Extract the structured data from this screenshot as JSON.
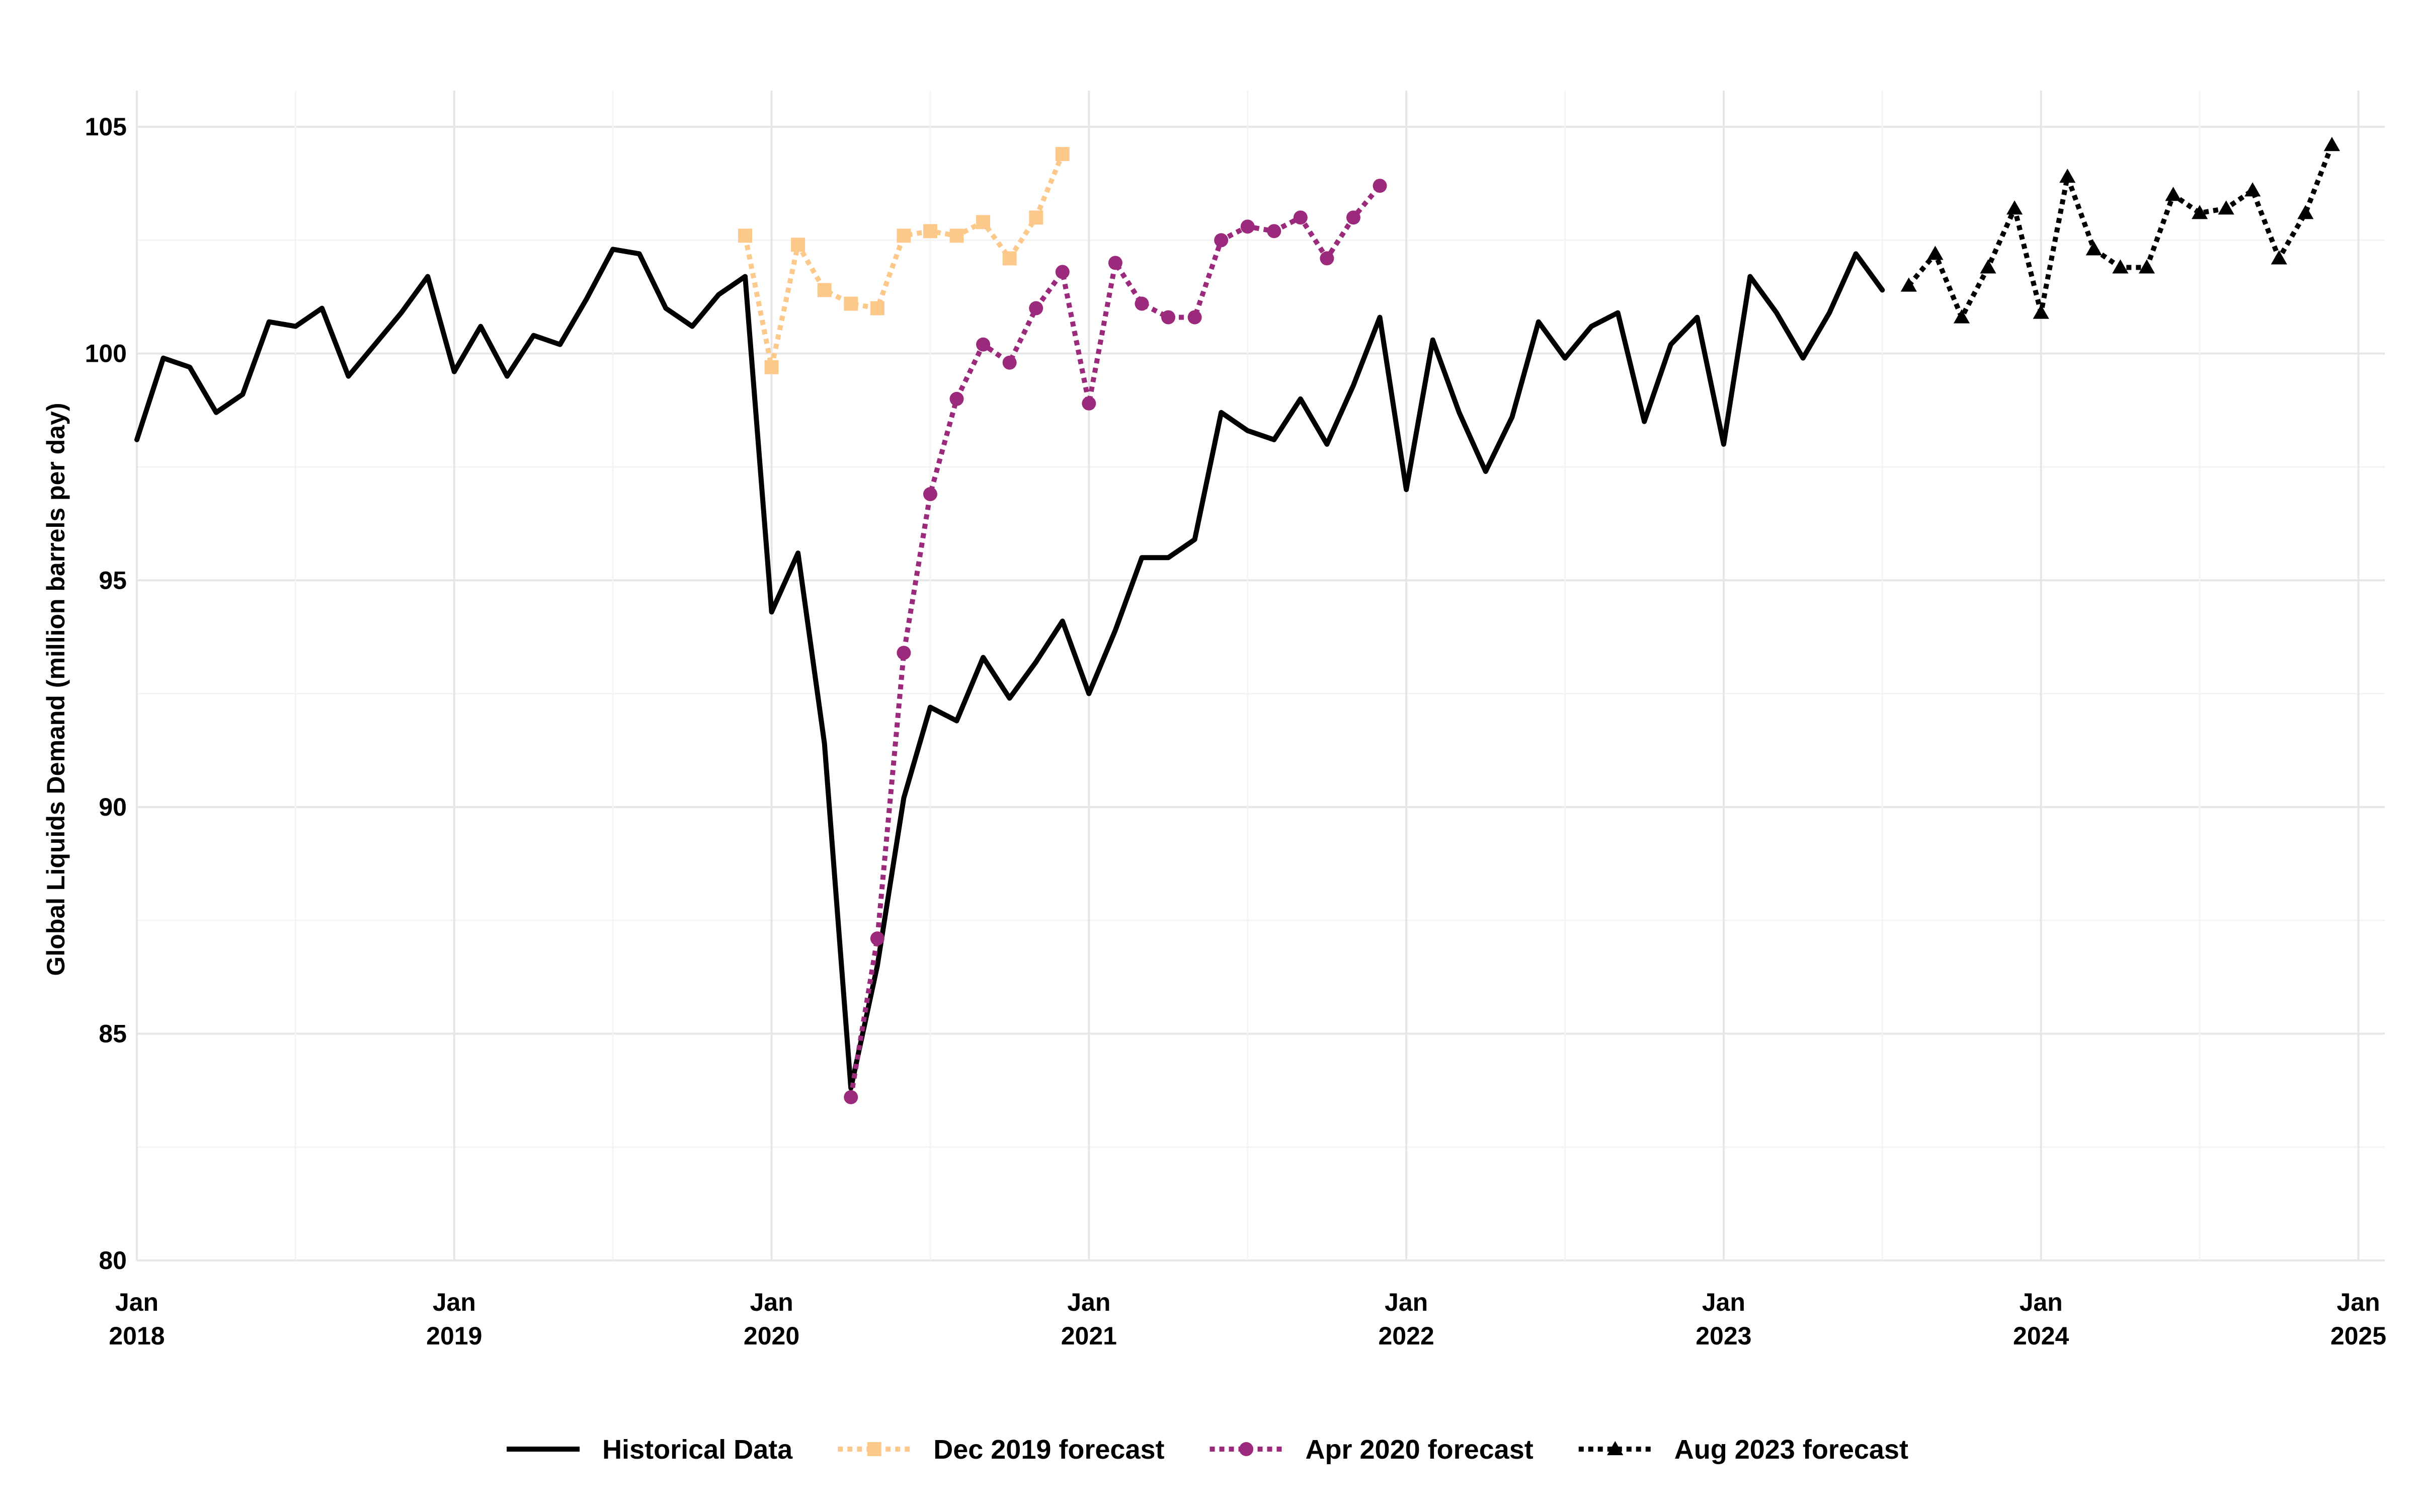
{
  "chart_data": {
    "type": "line",
    "xlabel": "",
    "ylabel": "Global Liquids Demand (million barrels per day)",
    "ylim": [
      80,
      105.8
    ],
    "xlim": [
      "2018-01",
      "2025-02"
    ],
    "y_ticks": [
      80,
      85,
      90,
      95,
      100,
      105
    ],
    "x_ticks": [
      {
        "date": "2018-01",
        "month": "Jan",
        "year": "2018"
      },
      {
        "date": "2019-01",
        "month": "Jan",
        "year": "2019"
      },
      {
        "date": "2020-01",
        "month": "Jan",
        "year": "2020"
      },
      {
        "date": "2021-01",
        "month": "Jan",
        "year": "2021"
      },
      {
        "date": "2022-01",
        "month": "Jan",
        "year": "2022"
      },
      {
        "date": "2023-01",
        "month": "Jan",
        "year": "2023"
      },
      {
        "date": "2024-01",
        "month": "Jan",
        "year": "2024"
      },
      {
        "date": "2025-01",
        "month": "Jan",
        "year": "2025"
      }
    ],
    "grid": true,
    "legend_position": "bottom",
    "series": [
      {
        "name": "Historical Data",
        "color": "#000000",
        "line": "solid",
        "marker": "none",
        "x": [
          "2018-01",
          "2018-02",
          "2018-03",
          "2018-04",
          "2018-05",
          "2018-06",
          "2018-07",
          "2018-08",
          "2018-09",
          "2018-10",
          "2018-11",
          "2018-12",
          "2019-01",
          "2019-02",
          "2019-03",
          "2019-04",
          "2019-05",
          "2019-06",
          "2019-07",
          "2019-08",
          "2019-09",
          "2019-10",
          "2019-11",
          "2019-12",
          "2020-01",
          "2020-02",
          "2020-03",
          "2020-04",
          "2020-05",
          "2020-06",
          "2020-07",
          "2020-08",
          "2020-09",
          "2020-10",
          "2020-11",
          "2020-12",
          "2021-01",
          "2021-02",
          "2021-03",
          "2021-04",
          "2021-05",
          "2021-06",
          "2021-07",
          "2021-08",
          "2021-09",
          "2021-10",
          "2021-11",
          "2021-12",
          "2022-01",
          "2022-02",
          "2022-03",
          "2022-04",
          "2022-05",
          "2022-06",
          "2022-07",
          "2022-08",
          "2022-09",
          "2022-10",
          "2022-11",
          "2022-12",
          "2023-01",
          "2023-02",
          "2023-03",
          "2023-04",
          "2023-05",
          "2023-06",
          "2023-07",
          "2023-08"
        ],
        "y": [
          98.1,
          99.9,
          99.7,
          98.7,
          99.1,
          100.7,
          100.6,
          101.0,
          99.5,
          100.2,
          100.9,
          101.7,
          99.6,
          100.6,
          99.5,
          100.4,
          100.2,
          101.2,
          102.3,
          102.2,
          101.0,
          100.6,
          101.3,
          101.7,
          94.3,
          95.6,
          91.4,
          83.8,
          86.5,
          90.2,
          92.2,
          91.9,
          93.3,
          92.4,
          93.2,
          94.1,
          92.5,
          93.9,
          95.5,
          95.5,
          95.9,
          98.7,
          98.3,
          98.1,
          99.0,
          98.0,
          99.3,
          100.8,
          97.0,
          100.3,
          98.7,
          97.4,
          98.6,
          100.7,
          99.9,
          100.6,
          100.9,
          98.5,
          100.2,
          100.8,
          98.0,
          101.7,
          100.9,
          99.9,
          100.9,
          102.2,
          101.4,
          null
        ]
      },
      {
        "name": "Dec 2019 forecast",
        "color": "#FDC98A",
        "line": "dotted",
        "marker": "square",
        "x": [
          "2019-12",
          "2020-01",
          "2020-02",
          "2020-03",
          "2020-04",
          "2020-05",
          "2020-06",
          "2020-07",
          "2020-08",
          "2020-09",
          "2020-10",
          "2020-11",
          "2020-12"
        ],
        "y": [
          102.6,
          99.7,
          102.4,
          101.4,
          101.1,
          101.0,
          102.6,
          102.7,
          102.6,
          102.9,
          102.1,
          103.0,
          104.4
        ]
      },
      {
        "name": "Apr 2020 forecast",
        "color": "#9C2A7C",
        "line": "dotted",
        "marker": "circle",
        "x": [
          "2020-04",
          "2020-05",
          "2020-06",
          "2020-07",
          "2020-08",
          "2020-09",
          "2020-10",
          "2020-11",
          "2020-12",
          "2021-01",
          "2021-02",
          "2021-03",
          "2021-04",
          "2021-05",
          "2021-06",
          "2021-07",
          "2021-08",
          "2021-09",
          "2021-10",
          "2021-11",
          "2021-12"
        ],
        "y": [
          83.6,
          87.1,
          93.4,
          96.9,
          99.0,
          100.2,
          99.8,
          101.0,
          101.8,
          98.9,
          102.0,
          101.1,
          100.8,
          100.8,
          102.5,
          102.8,
          102.7,
          103.0,
          102.1,
          103.0,
          103.7
        ]
      },
      {
        "name": "Aug 2023 forecast",
        "color": "#000000",
        "line": "dotted",
        "marker": "triangle",
        "x": [
          "2023-08",
          "2023-09",
          "2023-10",
          "2023-11",
          "2023-12",
          "2024-01",
          "2024-02",
          "2024-03",
          "2024-04",
          "2024-05",
          "2024-06",
          "2024-07",
          "2024-08",
          "2024-09",
          "2024-10",
          "2024-11",
          "2024-12"
        ],
        "y": [
          101.5,
          102.2,
          100.8,
          101.9,
          103.2,
          100.9,
          103.9,
          102.3,
          101.9,
          101.9,
          103.5,
          103.1,
          103.2,
          103.6,
          102.1,
          103.1,
          104.6
        ]
      }
    ]
  }
}
